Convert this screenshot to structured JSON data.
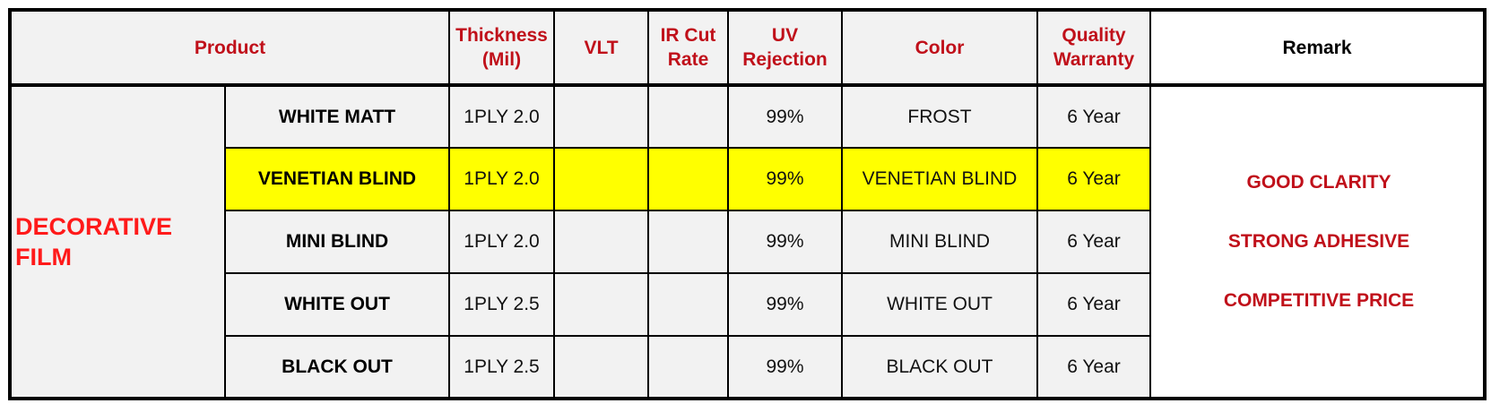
{
  "headers": {
    "product": "Product",
    "thickness": [
      "Thickness",
      "(Mil)"
    ],
    "vlt": "VLT",
    "ir_cut": [
      "IR Cut",
      "Rate"
    ],
    "uv": [
      "UV",
      "Rejection"
    ],
    "color": "Color",
    "warranty": [
      "Quality",
      "Warranty"
    ],
    "remark": "Remark"
  },
  "group": {
    "label": [
      "DECORATIVE",
      "FILM"
    ]
  },
  "rows": [
    {
      "product": "WHITE MATT",
      "thickness": "1PLY 2.0",
      "vlt": "",
      "ir": "",
      "uv": "99%",
      "color": "FROST",
      "warranty": "6 Year"
    },
    {
      "product": "VENETIAN BLIND",
      "thickness": "1PLY 2.0",
      "vlt": "",
      "ir": "",
      "uv": "99%",
      "color": "VENETIAN BLIND",
      "warranty": "6 Year"
    },
    {
      "product": "MINI BLIND",
      "thickness": "1PLY 2.0",
      "vlt": "",
      "ir": "",
      "uv": "99%",
      "color": "MINI BLIND",
      "warranty": "6 Year"
    },
    {
      "product": "WHITE OUT",
      "thickness": "1PLY 2.5",
      "vlt": "",
      "ir": "",
      "uv": "99%",
      "color": "WHITE OUT",
      "warranty": "6 Year"
    },
    {
      "product": "BLACK OUT",
      "thickness": "1PLY 2.5",
      "vlt": "",
      "ir": "",
      "uv": "99%",
      "color": "BLACK OUT",
      "warranty": "6 Year"
    }
  ],
  "remarks": [
    "GOOD CLARITY",
    "STRONG ADHESIVE",
    "COMPETITIVE PRICE"
  ],
  "colors": {
    "header_text": "#c0101a",
    "group_text": "#ff1a1a",
    "highlight_row": "#ffff00",
    "cell_bg": "#f2f2f2"
  }
}
